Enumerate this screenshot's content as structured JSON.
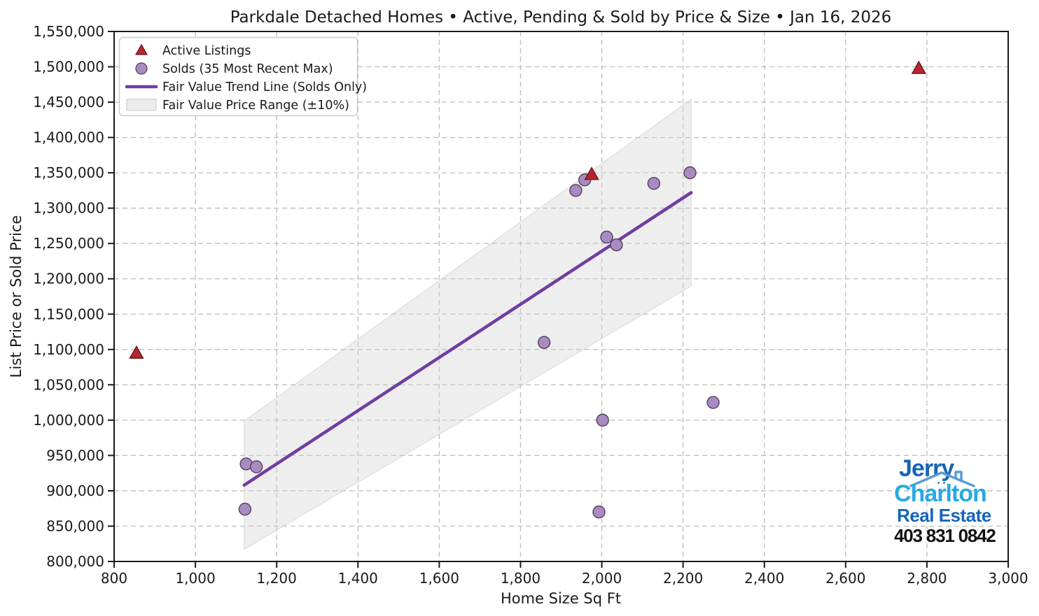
{
  "chart_data": {
    "type": "scatter",
    "title": "Parkdale Detached Homes • Active, Pending & Sold by Price & Size • Jan 16, 2026",
    "xlabel": "Home Size Sq Ft",
    "ylabel": "List Price or Sold Price",
    "xlim": [
      800,
      3000
    ],
    "ylim": [
      800000,
      1550000
    ],
    "x_ticks": [
      800,
      1000,
      1200,
      1400,
      1600,
      1800,
      2000,
      2200,
      2400,
      2600,
      2800,
      3000
    ],
    "y_ticks": [
      800000,
      850000,
      900000,
      950000,
      1000000,
      1050000,
      1100000,
      1150000,
      1200000,
      1250000,
      1300000,
      1350000,
      1400000,
      1450000,
      1500000,
      1550000
    ],
    "grid": true,
    "legend_position": "upper-left",
    "series": [
      {
        "name": "Active Listings",
        "marker": "triangle",
        "fill": "#b3282e",
        "edge": "#6e1216",
        "points": [
          [
            855,
            1095000
          ],
          [
            1975,
            1348000
          ],
          [
            2780,
            1498000
          ]
        ]
      },
      {
        "name": "Solds (35 Most Recent Max)",
        "marker": "circle",
        "fill": "#a88bc1",
        "edge": "#52405e",
        "points": [
          [
            1122,
            874000
          ],
          [
            1125,
            938000
          ],
          [
            1150,
            934000
          ],
          [
            1858,
            1110000
          ],
          [
            1936,
            1325000
          ],
          [
            1958,
            1340000
          ],
          [
            1993,
            870000
          ],
          [
            2002,
            1000000
          ],
          [
            2012,
            1259000
          ],
          [
            2036,
            1248000
          ],
          [
            2128,
            1335000
          ],
          [
            2217,
            1350000
          ],
          [
            2274,
            1025000
          ]
        ]
      }
    ],
    "trend_line": {
      "name": "Fair Value Trend Line (Solds Only)",
      "color": "#6f3da0",
      "x": [
        1120,
        2220
      ],
      "y": [
        908000,
        1322000
      ]
    },
    "band": {
      "name": "Fair Value Price Range (±10%)",
      "pct": 10,
      "fill": "#cfcfcf",
      "edge": "#c4c4c4"
    }
  },
  "legend": {
    "items": [
      {
        "marker": "triangle",
        "label": "Active Listings"
      },
      {
        "marker": "circle",
        "label": "Solds (35 Most Recent Max)"
      },
      {
        "marker": "line",
        "label": "Fair Value Trend Line (Solds Only)"
      },
      {
        "marker": "patch",
        "label": "Fair Value Price Range (±10%)"
      }
    ]
  },
  "logo": {
    "line1": "Jerry",
    "line2": "Charlton",
    "line3": "Real Estate",
    "phone": "403 831 0842",
    "colors": {
      "jerry": "#1565b8",
      "charlton": "#29a9e2",
      "real_estate": "#1565b8",
      "phone": "#111111",
      "roof": "#5b9bd5"
    }
  }
}
